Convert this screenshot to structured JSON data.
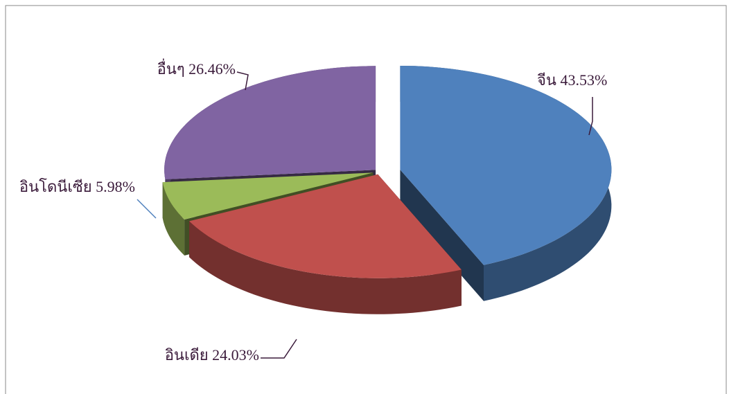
{
  "chart_data": {
    "type": "pie",
    "categories": [
      "จีน",
      "อินเดีย",
      "อินโดนีเซีย",
      "อื่นๆ"
    ],
    "values": [
      43.53,
      24.03,
      5.98,
      26.46
    ],
    "value_labels": [
      "43.53%",
      "24.03%",
      "5.98%",
      "26.46%"
    ],
    "colors": [
      "#4f81bd",
      "#c0504d",
      "#9bbb59",
      "#8064a2"
    ]
  }
}
